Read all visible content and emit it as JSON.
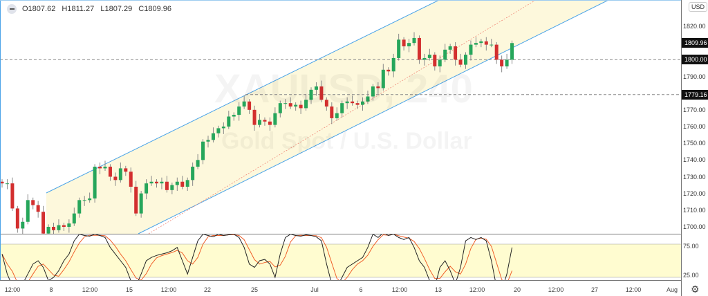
{
  "symbol_watermark": "XAUUSD, 240",
  "symbol_description": "Gold Spot / U.S. Dollar",
  "legend": {
    "open": "O1807.62",
    "high": "H1811.27",
    "low": "L1807.29",
    "close": "C1809.96"
  },
  "currency_label": "USD",
  "price_axis": [
    "1820.00",
    "1790.00",
    "1770.00",
    "1760.00",
    "1750.00",
    "1740.00",
    "1730.00",
    "1720.00",
    "1710.00",
    "1700.00"
  ],
  "price_labels": {
    "last": "1809.96",
    "level_1": "1800.00",
    "level_2": "1779.16"
  },
  "stoch_axis": [
    "75.00",
    "25.00"
  ],
  "time_axis": [
    "12:00",
    "8",
    "12:00",
    "15",
    "12:00",
    "22",
    "25",
    "Jul",
    "6",
    "12:00",
    "13",
    "12:00",
    "20",
    "12:00",
    "27",
    "12:00",
    "Aug"
  ],
  "colors": {
    "up": "#26a65b",
    "down": "#d32f2f",
    "channel": "#4aa3e8",
    "channel_fill": "#fdf8dc",
    "stoch_k": "#222222",
    "stoch_d": "#f0602a",
    "stoch_band": "#fffcd0"
  },
  "icons": {
    "collapse": "minus-circle-icon",
    "settings": "gear-icon"
  },
  "chart_data": {
    "type": "candlestick",
    "ylim": [
      1695,
      1825
    ],
    "horizontal_levels": [
      1800.0,
      1779.16
    ],
    "close": [
      1726,
      1726,
      1711,
      1699,
      1703,
      1716,
      1713,
      1709,
      1696,
      1700,
      1698,
      1701,
      1700,
      1702,
      1708,
      1716,
      1716,
      1717,
      1736,
      1735,
      1736,
      1730,
      1728,
      1735,
      1733,
      1724,
      1708,
      1720,
      1726,
      1727,
      1726,
      1727,
      1722,
      1725,
      1727,
      1724,
      1728,
      1736,
      1740,
      1751,
      1752,
      1756,
      1759,
      1760,
      1766,
      1767,
      1772,
      1775,
      1770,
      1761,
      1764,
      1763,
      1761,
      1768,
      1774,
      1774,
      1772,
      1773,
      1771,
      1776,
      1782,
      1784,
      1776,
      1772,
      1765,
      1768,
      1774,
      1775,
      1774,
      1773,
      1775,
      1778,
      1784,
      1783,
      1794,
      1793,
      1801,
      1812,
      1808,
      1810,
      1813,
      1800,
      1801,
      1803,
      1796,
      1800,
      1806,
      1808,
      1800,
      1797,
      1803,
      1809,
      1810,
      1811,
      1809,
      1809,
      1800,
      1796,
      1800,
      1809.96
    ],
    "stochastic_k": [
      60,
      30,
      12,
      8,
      15,
      30,
      45,
      50,
      40,
      20,
      25,
      35,
      50,
      60,
      80,
      90,
      88,
      87,
      90,
      88,
      85,
      70,
      60,
      50,
      40,
      20,
      12,
      30,
      50,
      55,
      58,
      60,
      62,
      65,
      70,
      50,
      30,
      55,
      80,
      90,
      88,
      86,
      90,
      88,
      89,
      90,
      85,
      70,
      45,
      40,
      50,
      52,
      45,
      25,
      60,
      85,
      90,
      88,
      87,
      89,
      88,
      86,
      80,
      45,
      15,
      10,
      25,
      40,
      45,
      50,
      55,
      70,
      90,
      85,
      92,
      88,
      90,
      85,
      82,
      85,
      70,
      50,
      40,
      20,
      10,
      40,
      50,
      35,
      15,
      40,
      80,
      85,
      82,
      85,
      80,
      50,
      10,
      5,
      30,
      70
    ],
    "stochastic_levels": [
      75,
      25
    ]
  }
}
